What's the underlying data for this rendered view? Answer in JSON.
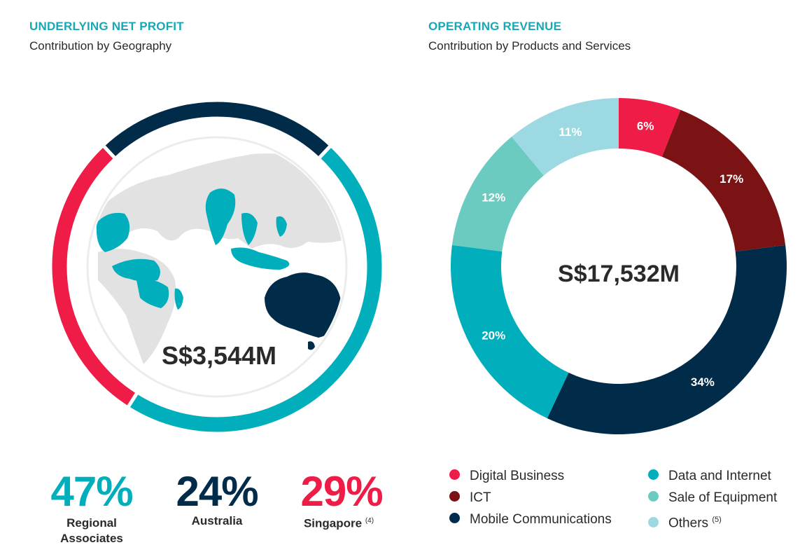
{
  "colors": {
    "teal": "#00aebc",
    "navy": "#002b49",
    "red": "#ee1c47",
    "maroon": "#7b1315",
    "sea_green": "#6ccbc0",
    "light_blue": "#9dd9e2",
    "title_teal": "#1aa7b5",
    "map_grey": "#e2e2e2"
  },
  "left_panel": {
    "title": "UNDERLYING NET PROFIT",
    "subtitle": "Contribution by Geography",
    "center_label": "S$3,544M",
    "stats": [
      {
        "pct": "47%",
        "label_line1": "Regional",
        "label_line2": "Associates",
        "note": "",
        "color": "#00aebc"
      },
      {
        "pct": "24%",
        "label_line1": "Australia",
        "label_line2": "",
        "note": "",
        "color": "#002b49"
      },
      {
        "pct": "29%",
        "label_line1": "Singapore",
        "label_line2": "",
        "note": "(4)",
        "color": "#ee1c47"
      }
    ]
  },
  "right_panel": {
    "title": "OPERATING REVENUE",
    "subtitle": "Contribution by Products and Services",
    "center_label": "S$17,532M",
    "legend": [
      {
        "label": "Digital Business",
        "note": "",
        "color": "#ee1c47"
      },
      {
        "label": "ICT",
        "note": "",
        "color": "#7b1315"
      },
      {
        "label": "Mobile Communications",
        "note": "",
        "color": "#002b49"
      },
      {
        "label": "Data and Internet",
        "note": "",
        "color": "#00aebc"
      },
      {
        "label": "Sale of Equipment",
        "note": "",
        "color": "#6ccbc0"
      },
      {
        "label": "Others",
        "note": "(5)",
        "color": "#9dd9e2"
      }
    ]
  },
  "chart_data": [
    {
      "type": "pie",
      "title": "UNDERLYING NET PROFIT",
      "subtitle": "Contribution by Geography",
      "total_label": "S$3,544M",
      "categories": [
        "Regional Associates",
        "Singapore",
        "Australia"
      ],
      "values": [
        47,
        29,
        24
      ],
      "unit": "%",
      "colors": [
        "#00aebc",
        "#ee1c47",
        "#002b49"
      ],
      "legend": "below"
    },
    {
      "type": "pie",
      "title": "OPERATING REVENUE",
      "subtitle": "Contribution by Products and Services",
      "total_label": "S$17,532M",
      "categories": [
        "Digital Business",
        "ICT",
        "Mobile Communications",
        "Data and Internet",
        "Sale of Equipment",
        "Others"
      ],
      "values": [
        6,
        17,
        34,
        20,
        12,
        11
      ],
      "data_labels": [
        "6%",
        "17%",
        "34%",
        "20%",
        "12%",
        "11%"
      ],
      "unit": "%",
      "colors": [
        "#ee1c47",
        "#7b1315",
        "#002b49",
        "#00aebc",
        "#6ccbc0",
        "#9dd9e2"
      ],
      "legend": "bottom"
    }
  ]
}
